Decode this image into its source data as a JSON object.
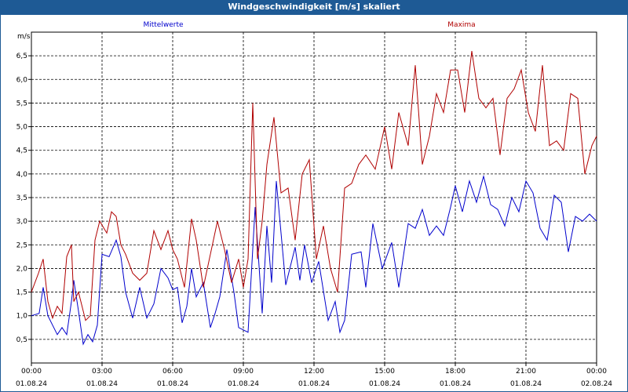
{
  "window": {
    "title": "Windgeschwindigkeit [m/s] skaliert"
  },
  "chart_data": {
    "type": "line",
    "title": "Windgeschwindigkeit [m/s] skaliert",
    "ylabel": "m/s",
    "ylim": [
      0,
      7
    ],
    "yticks": [
      "0,5",
      "1,0",
      "1,5",
      "2,0",
      "2,5",
      "3,0",
      "3,5",
      "4,0",
      "4,5",
      "5,0",
      "5,5",
      "6,0",
      "6,5"
    ],
    "xticks": [
      {
        "time": "00:00",
        "date": "01.08.24"
      },
      {
        "time": "03:00",
        "date": "01.08.24"
      },
      {
        "time": "06:00",
        "date": "01.08.24"
      },
      {
        "time": "09:00",
        "date": "01.08.24"
      },
      {
        "time": "12:00",
        "date": "01.08.24"
      },
      {
        "time": "15:00",
        "date": "01.08.24"
      },
      {
        "time": "18:00",
        "date": "01.08.24"
      },
      {
        "time": "21:00",
        "date": "01.08.24"
      },
      {
        "time": "00:00",
        "date": "02.08.24"
      }
    ],
    "xrange_hours": [
      0,
      24
    ],
    "grid": true,
    "series": [
      {
        "name": "Mittelwerte",
        "color": "#0000cc",
        "x": [
          0,
          0.33,
          0.5,
          0.7,
          0.9,
          1.1,
          1.3,
          1.5,
          1.7,
          1.8,
          2.0,
          2.2,
          2.4,
          2.6,
          2.8,
          3.0,
          3.3,
          3.6,
          3.8,
          4.0,
          4.3,
          4.6,
          4.9,
          5.2,
          5.5,
          5.8,
          6.0,
          6.2,
          6.4,
          6.6,
          6.8,
          7.0,
          7.3,
          7.6,
          7.8,
          8.0,
          8.3,
          8.6,
          8.8,
          9.0,
          9.2,
          9.5,
          9.8,
          10.0,
          10.2,
          10.4,
          10.8,
          11.2,
          11.4,
          11.6,
          11.9,
          12.2,
          12.6,
          12.9,
          13.1,
          13.3,
          13.6,
          14.0,
          14.2,
          14.5,
          14.9,
          15.3,
          15.6,
          16.0,
          16.3,
          16.6,
          16.9,
          17.2,
          17.5,
          17.8,
          18.0,
          18.3,
          18.6,
          18.9,
          19.2,
          19.5,
          19.8,
          20.1,
          20.4,
          20.7,
          21.0,
          21.3,
          21.6,
          21.9,
          22.2,
          22.5,
          22.8,
          23.1,
          23.4,
          23.7,
          24.0
        ],
        "values": [
          1.0,
          1.05,
          1.6,
          1.0,
          0.8,
          0.6,
          0.75,
          0.6,
          1.3,
          1.75,
          1.1,
          0.4,
          0.6,
          0.45,
          0.8,
          2.3,
          2.25,
          2.6,
          2.25,
          1.5,
          0.95,
          1.6,
          0.95,
          1.25,
          2.0,
          1.8,
          1.55,
          1.6,
          0.85,
          1.2,
          2.0,
          1.4,
          1.7,
          0.75,
          1.05,
          1.4,
          2.4,
          1.5,
          0.75,
          0.7,
          0.65,
          3.3,
          1.05,
          2.9,
          1.7,
          3.85,
          1.65,
          2.45,
          1.75,
          2.5,
          1.7,
          2.15,
          0.9,
          1.3,
          0.65,
          0.9,
          2.3,
          2.35,
          1.6,
          2.95,
          2.0,
          2.55,
          1.6,
          2.95,
          2.85,
          3.25,
          2.7,
          2.9,
          2.7,
          3.3,
          3.75,
          3.2,
          3.85,
          3.4,
          3.95,
          3.35,
          3.25,
          2.9,
          3.5,
          3.2,
          3.85,
          3.6,
          2.85,
          2.6,
          3.55,
          3.4,
          2.35,
          3.1,
          3.0,
          3.15,
          3.0
        ]
      },
      {
        "name": "Maxima",
        "color": "#b00000",
        "x": [
          0,
          0.3,
          0.5,
          0.7,
          0.9,
          1.1,
          1.3,
          1.5,
          1.7,
          1.8,
          2.0,
          2.3,
          2.5,
          2.7,
          2.9,
          3.2,
          3.4,
          3.6,
          3.8,
          4.0,
          4.3,
          4.6,
          4.9,
          5.2,
          5.5,
          5.8,
          6.0,
          6.2,
          6.5,
          6.8,
          7.0,
          7.3,
          7.6,
          7.9,
          8.2,
          8.5,
          8.8,
          9.0,
          9.2,
          9.4,
          9.6,
          9.8,
          10.0,
          10.3,
          10.6,
          10.9,
          11.2,
          11.5,
          11.8,
          12.1,
          12.4,
          12.7,
          13.0,
          13.3,
          13.6,
          13.9,
          14.2,
          14.6,
          15.0,
          15.3,
          15.6,
          16.0,
          16.3,
          16.6,
          16.9,
          17.2,
          17.5,
          17.8,
          18.1,
          18.4,
          18.7,
          19.0,
          19.3,
          19.6,
          19.9,
          20.2,
          20.5,
          20.8,
          21.1,
          21.4,
          21.7,
          22.0,
          22.3,
          22.6,
          22.9,
          23.2,
          23.5,
          23.8,
          24.0
        ],
        "values": [
          1.5,
          1.9,
          2.2,
          1.3,
          0.95,
          1.2,
          1.05,
          2.25,
          2.5,
          1.3,
          1.5,
          0.9,
          1.0,
          2.6,
          3.0,
          2.75,
          3.2,
          3.1,
          2.5,
          2.3,
          1.9,
          1.75,
          1.9,
          2.8,
          2.4,
          2.8,
          2.4,
          2.2,
          1.6,
          3.05,
          2.6,
          1.6,
          2.3,
          3.0,
          2.4,
          1.7,
          2.2,
          1.6,
          2.2,
          5.5,
          2.2,
          3.0,
          4.2,
          5.2,
          3.6,
          3.7,
          2.6,
          4.0,
          4.3,
          2.2,
          2.9,
          2.0,
          1.5,
          3.7,
          3.8,
          4.2,
          4.4,
          4.1,
          5.0,
          4.1,
          5.3,
          4.6,
          6.3,
          4.2,
          4.8,
          5.7,
          5.3,
          6.2,
          6.2,
          5.3,
          6.6,
          5.6,
          5.4,
          5.6,
          4.4,
          5.6,
          5.8,
          6.2,
          5.3,
          4.9,
          6.3,
          4.6,
          4.7,
          4.5,
          5.7,
          5.6,
          4.0,
          4.6,
          4.8
        ]
      }
    ]
  }
}
